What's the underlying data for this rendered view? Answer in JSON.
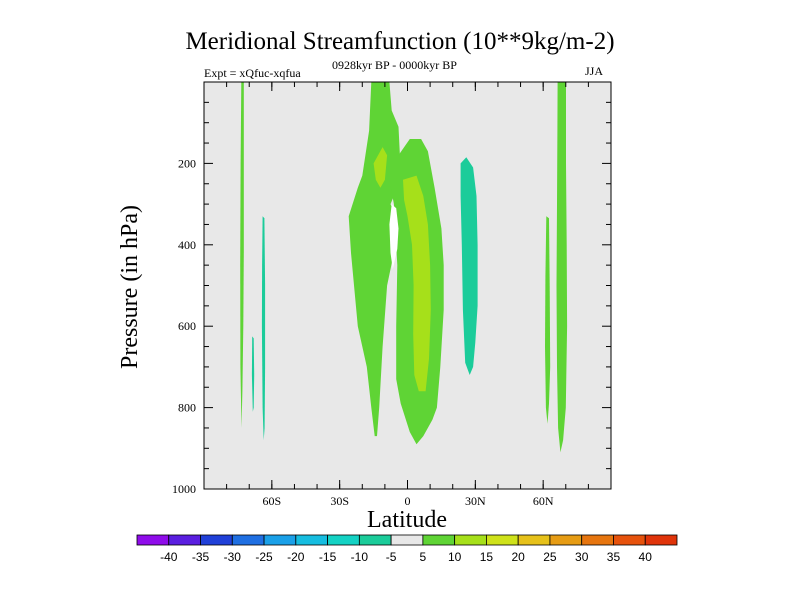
{
  "chart_data": {
    "type": "contour",
    "title": "Meridional Streamfunction (10**9kg/m-2)",
    "subtitle_left": "Expt = xQfuc-xqfua",
    "subtitle_center": "0928kyr BP - 0000kyr BP",
    "subtitle_right": "JJA",
    "xlabel": "Latitude",
    "ylabel": "Pressure (in hPa)",
    "xlim": [
      -90,
      90
    ],
    "ylim": [
      1000,
      0
    ],
    "x_ticks": [
      {
        "value": -60,
        "label": "60S"
      },
      {
        "value": -30,
        "label": "30S"
      },
      {
        "value": 0,
        "label": "0"
      },
      {
        "value": 30,
        "label": "30N"
      },
      {
        "value": 60,
        "label": "60N"
      }
    ],
    "y_ticks": [
      {
        "value": 200,
        "label": "200"
      },
      {
        "value": 400,
        "label": "400"
      },
      {
        "value": 600,
        "label": "600"
      },
      {
        "value": 800,
        "label": "800"
      },
      {
        "value": 1000,
        "label": "1000"
      }
    ],
    "background_fill": "#e8e8e8",
    "contour_regions": [
      {
        "level": "5 to 10",
        "color": "#5fd435",
        "points": [
          [
            -73.5,
            0
          ],
          [
            -72.4,
            0
          ],
          [
            -72.4,
            420
          ],
          [
            -72.6,
            600
          ],
          [
            -73.0,
            760
          ],
          [
            -73.4,
            850
          ],
          [
            -73.9,
            700
          ],
          [
            -74.0,
            450
          ],
          [
            -73.8,
            200
          ]
        ]
      },
      {
        "level": "5 to 10",
        "color": "#5fd435",
        "points": [
          [
            -16,
            0
          ],
          [
            -8,
            0
          ],
          [
            -7,
            70
          ],
          [
            -4,
            110
          ],
          [
            -3,
            220
          ],
          [
            -6,
            280
          ],
          [
            -7.5,
            300
          ],
          [
            -5,
            330
          ],
          [
            -4,
            380
          ],
          [
            -6,
            420
          ],
          [
            -9,
            500
          ],
          [
            -11,
            650
          ],
          [
            -12.5,
            800
          ],
          [
            -13.5,
            870
          ],
          [
            -14.5,
            870
          ],
          [
            -16,
            800
          ],
          [
            -18,
            700
          ],
          [
            -22,
            600
          ],
          [
            -25,
            420
          ],
          [
            -26,
            330
          ],
          [
            -22,
            260
          ],
          [
            -20,
            230
          ],
          [
            -17,
            120
          ]
        ]
      },
      {
        "level": "5 to 10",
        "color": "#5fd435",
        "points": [
          [
            -11,
            220
          ],
          [
            -4,
            180
          ],
          [
            1,
            140
          ],
          [
            6,
            140
          ],
          [
            9,
            170
          ],
          [
            12,
            260
          ],
          [
            15,
            360
          ],
          [
            16,
            450
          ],
          [
            16,
            560
          ],
          [
            14.5,
            700
          ],
          [
            13,
            800
          ],
          [
            11,
            830
          ],
          [
            7,
            870
          ],
          [
            4,
            890
          ],
          [
            1,
            860
          ],
          [
            -3,
            790
          ],
          [
            -5,
            730
          ],
          [
            -5,
            600
          ],
          [
            -4.5,
            450
          ],
          [
            -6,
            300
          ],
          [
            -8,
            240
          ]
        ]
      },
      {
        "level": "5 to 10",
        "color": "#5fd435",
        "points": [
          [
            66.4,
            0
          ],
          [
            70.1,
            0
          ],
          [
            70.1,
            200
          ],
          [
            70.4,
            400
          ],
          [
            70.6,
            600
          ],
          [
            70.0,
            800
          ],
          [
            68.8,
            880
          ],
          [
            67.6,
            910
          ],
          [
            66.6,
            850
          ],
          [
            66.1,
            700
          ],
          [
            65.9,
            500
          ],
          [
            66.1,
            300
          ],
          [
            66.3,
            120
          ]
        ]
      },
      {
        "level": "5 to 10",
        "color": "#5fd435",
        "points": [
          [
            61.4,
            330
          ],
          [
            62.6,
            335
          ],
          [
            62.9,
            500
          ],
          [
            63.1,
            700
          ],
          [
            62.6,
            790
          ],
          [
            61.9,
            840
          ],
          [
            61.2,
            800
          ],
          [
            60.8,
            650
          ],
          [
            61.0,
            480
          ]
        ]
      },
      {
        "level": "10 to 15",
        "color": "#a6e01a",
        "points": [
          [
            -15,
            200
          ],
          [
            -11,
            160
          ],
          [
            -9,
            180
          ],
          [
            -10,
            240
          ],
          [
            -12,
            260
          ],
          [
            -14,
            240
          ]
        ]
      },
      {
        "level": "10 to 15",
        "color": "#a6e01a",
        "points": [
          [
            -2,
            240
          ],
          [
            4,
            230
          ],
          [
            7,
            280
          ],
          [
            9,
            350
          ],
          [
            10,
            450
          ],
          [
            10.3,
            560
          ],
          [
            9.5,
            680
          ],
          [
            8,
            760
          ],
          [
            5,
            760
          ],
          [
            3,
            720
          ],
          [
            2.5,
            620
          ],
          [
            2.7,
            500
          ],
          [
            2,
            400
          ],
          [
            0,
            330
          ],
          [
            -1.5,
            290
          ]
        ]
      },
      {
        "level": "-10 to -5",
        "color": "#1bcc9a",
        "points": [
          [
            23.5,
            200
          ],
          [
            26,
            185
          ],
          [
            29,
            210
          ],
          [
            30.5,
            280
          ],
          [
            31,
            400
          ],
          [
            31,
            550
          ],
          [
            30,
            640
          ],
          [
            29,
            700
          ],
          [
            27.5,
            720
          ],
          [
            25.5,
            690
          ],
          [
            24.5,
            560
          ],
          [
            24,
            400
          ],
          [
            23.5,
            280
          ]
        ]
      },
      {
        "level": "-10 to -5",
        "color": "#1bcc9a",
        "points": [
          [
            -64.1,
            330
          ],
          [
            -63.3,
            335
          ],
          [
            -63.0,
            500
          ],
          [
            -63.0,
            700
          ],
          [
            -63.2,
            850
          ],
          [
            -63.6,
            880
          ],
          [
            -64.1,
            800
          ],
          [
            -64.4,
            600
          ],
          [
            -64.3,
            450
          ]
        ]
      },
      {
        "level": "-10 to -5",
        "color": "#1bcc9a",
        "points": [
          [
            -68.7,
            625
          ],
          [
            -68.0,
            630
          ],
          [
            -67.8,
            720
          ],
          [
            -68.0,
            800
          ],
          [
            -68.4,
            810
          ],
          [
            -68.8,
            720
          ]
        ]
      },
      {
        "level": "-5 to 5",
        "color": "#ffffff",
        "points": [
          [
            -7,
            300
          ],
          [
            -5,
            310
          ],
          [
            -4,
            360
          ],
          [
            -4.5,
            410
          ],
          [
            -6.5,
            460
          ],
          [
            -7.5,
            420
          ],
          [
            -8,
            350
          ]
        ]
      }
    ],
    "colorbar": {
      "levels": [
        "-40",
        "-35",
        "-30",
        "-25",
        "-20",
        "-15",
        "-10",
        "-5",
        "5",
        "10",
        "15",
        "20",
        "25",
        "30",
        "35",
        "40"
      ],
      "colors": [
        "#8f0cea",
        "#5a1ee0",
        "#2040d8",
        "#1f6fe2",
        "#1aa0e8",
        "#16bde0",
        "#14d2c4",
        "#1bcc9a",
        "#e8e8e8",
        "#5fd435",
        "#a6e01a",
        "#cfe21a",
        "#e6c11a",
        "#e69c14",
        "#e6750f",
        "#e6520c",
        "#e0340a"
      ]
    }
  }
}
